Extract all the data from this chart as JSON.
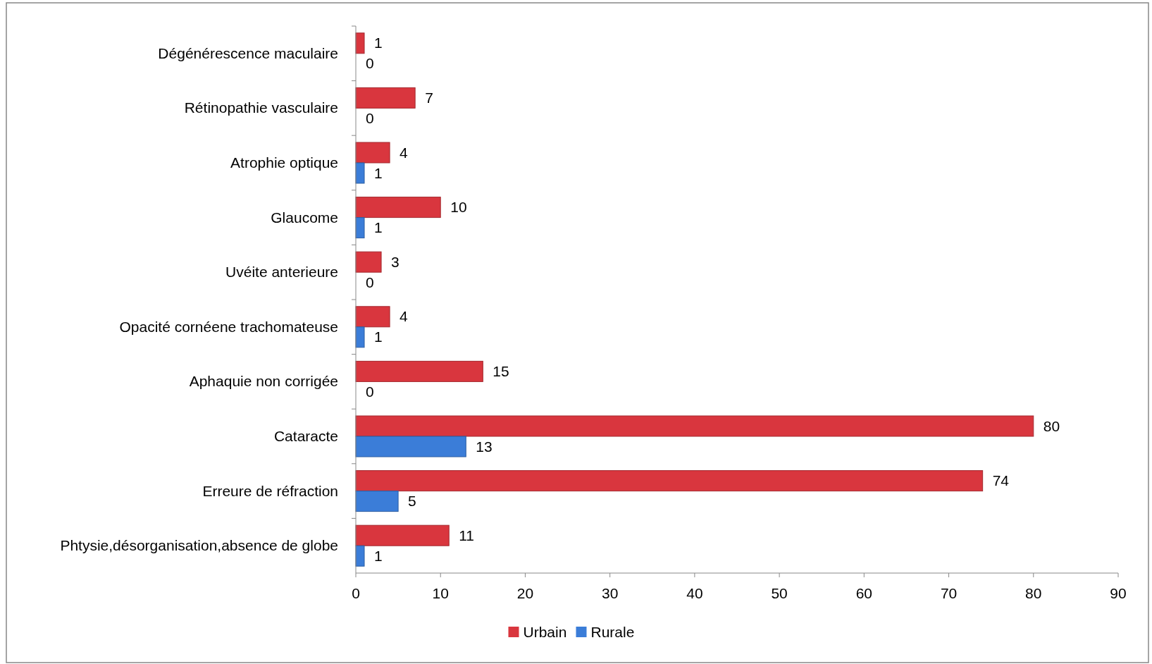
{
  "chart_data": {
    "type": "bar",
    "orientation": "horizontal",
    "categories": [
      "Dégénérescence maculaire",
      "Rétinopathie vasculaire",
      "Atrophie optique",
      "Glaucome",
      "Uvéite anterieure",
      "Opacité cornéene trachomateuse",
      "Aphaquie non corrigée",
      "Cataracte",
      "Erreure de réfraction",
      "Phtysie,désorganisation,absence de globe"
    ],
    "series": [
      {
        "name": "Urbain",
        "color": "#d9363e",
        "values": [
          1,
          7,
          4,
          10,
          3,
          4,
          15,
          80,
          74,
          11
        ]
      },
      {
        "name": "Rurale",
        "color": "#3b7dd8",
        "values": [
          0,
          0,
          1,
          1,
          0,
          1,
          0,
          13,
          5,
          1
        ]
      }
    ],
    "xlim": [
      0,
      90
    ],
    "xticks": [
      0,
      10,
      20,
      30,
      40,
      50,
      60,
      70,
      80,
      90
    ],
    "data_labels": true,
    "legend": "bottom"
  }
}
